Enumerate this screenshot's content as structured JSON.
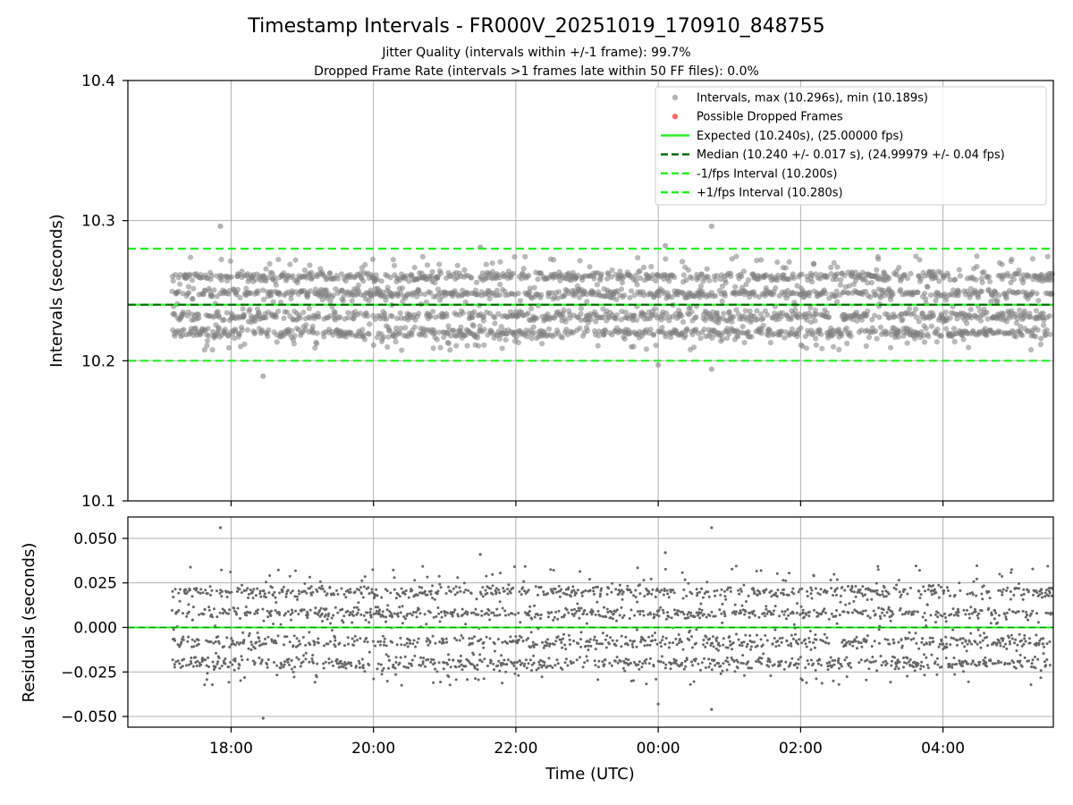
{
  "title": "Timestamp Intervals - FR000V_20251019_170910_848755",
  "subtitle_jitter": "Jitter Quality (intervals within +/-1 frame): 99.7%",
  "subtitle_dropped": "Dropped Frame Rate (intervals >1 frames late within 50 FF files): 0.0%",
  "colors": {
    "points": "#808080",
    "dropped": "#ff3030",
    "expected": "#22ee22",
    "median": "#006400",
    "interval": "#22ee22"
  },
  "chart_data": [
    {
      "type": "scatter",
      "name": "intervals",
      "xlabel": "",
      "ylabel": "Intervals (seconds)",
      "xlim_hours": [
        16.55,
        29.55
      ],
      "ylim": [
        10.1,
        10.4
      ],
      "yticks": [
        "10.1",
        "10.2",
        "10.3",
        "10.4"
      ],
      "ytick_values": [
        10.1,
        10.2,
        10.3,
        10.4
      ],
      "series_summary": {
        "x_start_hours": 17.17,
        "x_end_hours": 29.55,
        "median": 10.24,
        "max": 10.296,
        "min": 10.189,
        "clusters": [
          10.22,
          10.232,
          10.248,
          10.26
        ],
        "outliers": [
          [
            17.85,
            10.296
          ],
          [
            18.45,
            10.189
          ],
          [
            24.0,
            10.197
          ],
          [
            24.1,
            10.282
          ],
          [
            24.75,
            10.296
          ],
          [
            24.75,
            10.194
          ],
          [
            21.5,
            10.281
          ]
        ]
      },
      "hlines": [
        {
          "name": "expected",
          "y": 10.24
        },
        {
          "name": "median",
          "y": 10.24
        },
        {
          "name": "minus_interval",
          "y": 10.2
        },
        {
          "name": "plus_interval",
          "y": 10.28
        }
      ],
      "legend": [
        {
          "label": "Intervals, max (10.296s), min (10.189s)",
          "kind": "dot-gray"
        },
        {
          "label": "Possible Dropped Frames",
          "kind": "dot-red"
        },
        {
          "label": "Expected (10.240s), (25.00000 fps)",
          "kind": "solid-green"
        },
        {
          "label": "Median (10.240 +/- 0.017 s), (24.99979 +/- 0.04 fps)",
          "kind": "dash-darkgreen"
        },
        {
          "label": "-1/fps Interval (10.200s)",
          "kind": "dash-green"
        },
        {
          "label": "+1/fps Interval (10.280s)",
          "kind": "dash-green"
        }
      ],
      "legend_position": "top-right"
    },
    {
      "type": "scatter",
      "name": "residuals",
      "xlabel": "Time (UTC)",
      "ylabel": "Residuals (seconds)",
      "xlim_hours": [
        16.55,
        29.55
      ],
      "ylim": [
        -0.056,
        0.062
      ],
      "yticks": [
        "−0.050",
        "−0.025",
        "0.000",
        "0.025",
        "0.050"
      ],
      "ytick_values": [
        -0.05,
        -0.025,
        0.0,
        0.025,
        0.05
      ],
      "xticks": [
        "18:00",
        "20:00",
        "22:00",
        "00:00",
        "02:00",
        "04:00"
      ],
      "xtick_values_hours": [
        18,
        20,
        22,
        24,
        26,
        28
      ],
      "zero_line": 0.0,
      "series_summary": {
        "clusters": [
          -0.02,
          -0.008,
          0.008,
          0.02
        ],
        "outliers": [
          [
            24.75,
            0.056
          ],
          [
            18.45,
            -0.051
          ],
          [
            24.0,
            0.044
          ],
          [
            24.75,
            -0.046
          ]
        ]
      }
    }
  ]
}
